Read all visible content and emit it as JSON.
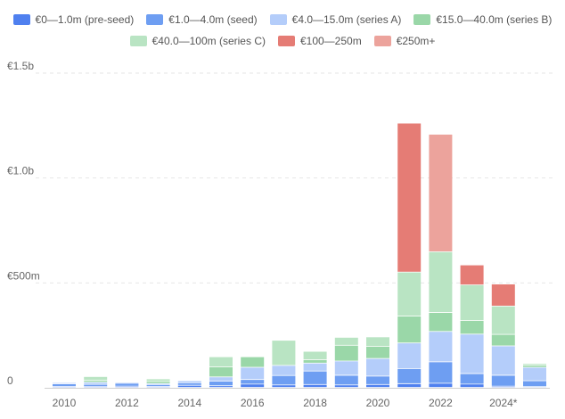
{
  "chart_data": {
    "type": "bar",
    "stacked": true,
    "title": "",
    "xlabel": "",
    "ylabel": "",
    "ylim": [
      0,
      1500
    ],
    "y_ticks": [
      {
        "value": 0,
        "label": "0"
      },
      {
        "value": 500,
        "label": "€500m"
      },
      {
        "value": 1000,
        "label": "€1.0b"
      },
      {
        "value": 1500,
        "label": "€1.5b"
      }
    ],
    "grid": true,
    "legend_position": "top-center",
    "categories": [
      "2010",
      "2011",
      "2012",
      "2013",
      "2014",
      "2015",
      "2016",
      "2017",
      "2018",
      "2019",
      "2020",
      "2021",
      "2022",
      "2023",
      "2024*",
      "2025"
    ],
    "x_tick_labels": [
      "2010",
      "",
      "2012",
      "",
      "2014",
      "",
      "2016",
      "",
      "2018",
      "",
      "2020",
      "",
      "2022",
      "",
      "2024*",
      ""
    ],
    "series": [
      {
        "name": "€0—1.0m (pre-seed)",
        "color": "#4f80ef",
        "values": [
          5,
          5,
          6,
          5,
          10,
          8,
          16,
          12,
          14,
          12,
          14,
          18,
          20,
          16,
          6,
          4
        ]
      },
      {
        "name": "€1.0—4.0m (seed)",
        "color": "#6e9ef2",
        "values": [
          12,
          10,
          14,
          9,
          12,
          22,
          22,
          45,
          64,
          46,
          40,
          72,
          102,
          50,
          52,
          28
        ]
      },
      {
        "name": "€4.0—15.0m (series A)",
        "color": "#b4cdfa",
        "values": [
          6,
          10,
          5,
          5,
          10,
          20,
          58,
          48,
          38,
          68,
          84,
          122,
          145,
          188,
          140,
          64
        ]
      },
      {
        "name": "€15.0—40.0m (series B)",
        "color": "#9ad7a8",
        "values": [
          0,
          9,
          0,
          10,
          3,
          48,
          50,
          0,
          16,
          75,
          58,
          128,
          90,
          65,
          55,
          10
        ]
      },
      {
        "name": "€40.0—100m (series C)",
        "color": "#b9e4c3",
        "values": [
          0,
          18,
          0,
          12,
          0,
          48,
          0,
          120,
          40,
          38,
          45,
          210,
          290,
          170,
          135,
          8
        ]
      },
      {
        "name": "€100—250m",
        "color": "#e57c75",
        "values": [
          0,
          0,
          0,
          0,
          0,
          0,
          0,
          0,
          0,
          0,
          0,
          710,
          0,
          95,
          105,
          0
        ]
      },
      {
        "name": "€250m+",
        "color": "#eca39c",
        "values": [
          0,
          0,
          0,
          0,
          0,
          0,
          0,
          0,
          0,
          0,
          0,
          0,
          560,
          0,
          0,
          0
        ]
      }
    ],
    "legend_rows": [
      [
        0,
        1,
        2,
        3
      ],
      [
        4,
        5,
        6
      ]
    ]
  }
}
